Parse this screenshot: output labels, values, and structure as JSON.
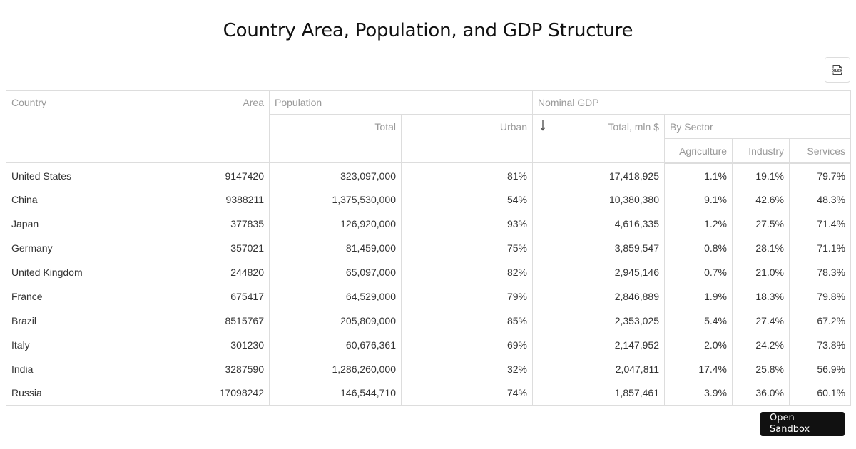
{
  "title": "Country Area, Population, and GDP Structure",
  "toolbar": {
    "export_icon": "xlsx-export-icon",
    "export_icon_text": "XLSX"
  },
  "headers": {
    "country": "Country",
    "area": "Area",
    "population": "Population",
    "pop_total": "Total",
    "pop_urban": "Urban",
    "gdp": "Nominal GDP",
    "gdp_total": "Total, mln $",
    "gdp_by_sector": "By Sector",
    "agriculture": "Agriculture",
    "industry": "Industry",
    "services": "Services"
  },
  "sort": {
    "column": "gdp_total",
    "direction": "descending",
    "icon": "sort-descending-icon"
  },
  "rows": [
    {
      "country": "United States",
      "area": "9147420",
      "pop_total": "323,097,000",
      "pop_urban": "81%",
      "gdp_total": "17,418,925",
      "agriculture": "1.1%",
      "industry": "19.1%",
      "services": "79.7%"
    },
    {
      "country": "China",
      "area": "9388211",
      "pop_total": "1,375,530,000",
      "pop_urban": "54%",
      "gdp_total": "10,380,380",
      "agriculture": "9.1%",
      "industry": "42.6%",
      "services": "48.3%"
    },
    {
      "country": "Japan",
      "area": "377835",
      "pop_total": "126,920,000",
      "pop_urban": "93%",
      "gdp_total": "4,616,335",
      "agriculture": "1.2%",
      "industry": "27.5%",
      "services": "71.4%"
    },
    {
      "country": "Germany",
      "area": "357021",
      "pop_total": "81,459,000",
      "pop_urban": "75%",
      "gdp_total": "3,859,547",
      "agriculture": "0.8%",
      "industry": "28.1%",
      "services": "71.1%"
    },
    {
      "country": "United Kingdom",
      "area": "244820",
      "pop_total": "65,097,000",
      "pop_urban": "82%",
      "gdp_total": "2,945,146",
      "agriculture": "0.7%",
      "industry": "21.0%",
      "services": "78.3%"
    },
    {
      "country": "France",
      "area": "675417",
      "pop_total": "64,529,000",
      "pop_urban": "79%",
      "gdp_total": "2,846,889",
      "agriculture": "1.9%",
      "industry": "18.3%",
      "services": "79.8%"
    },
    {
      "country": "Brazil",
      "area": "8515767",
      "pop_total": "205,809,000",
      "pop_urban": "85%",
      "gdp_total": "2,353,025",
      "agriculture": "5.4%",
      "industry": "27.4%",
      "services": "67.2%"
    },
    {
      "country": "Italy",
      "area": "301230",
      "pop_total": "60,676,361",
      "pop_urban": "69%",
      "gdp_total": "2,147,952",
      "agriculture": "2.0%",
      "industry": "24.2%",
      "services": "73.8%"
    },
    {
      "country": "India",
      "area": "3287590",
      "pop_total": "1,286,260,000",
      "pop_urban": "32%",
      "gdp_total": "2,047,811",
      "agriculture": "17.4%",
      "industry": "25.8%",
      "services": "56.9%"
    },
    {
      "country": "Russia",
      "area": "17098242",
      "pop_total": "146,544,710",
      "pop_urban": "74%",
      "gdp_total": "1,857,461",
      "agriculture": "3.9%",
      "industry": "36.0%",
      "services": "60.1%"
    }
  ],
  "sandbox": {
    "label": "Open Sandbox"
  }
}
